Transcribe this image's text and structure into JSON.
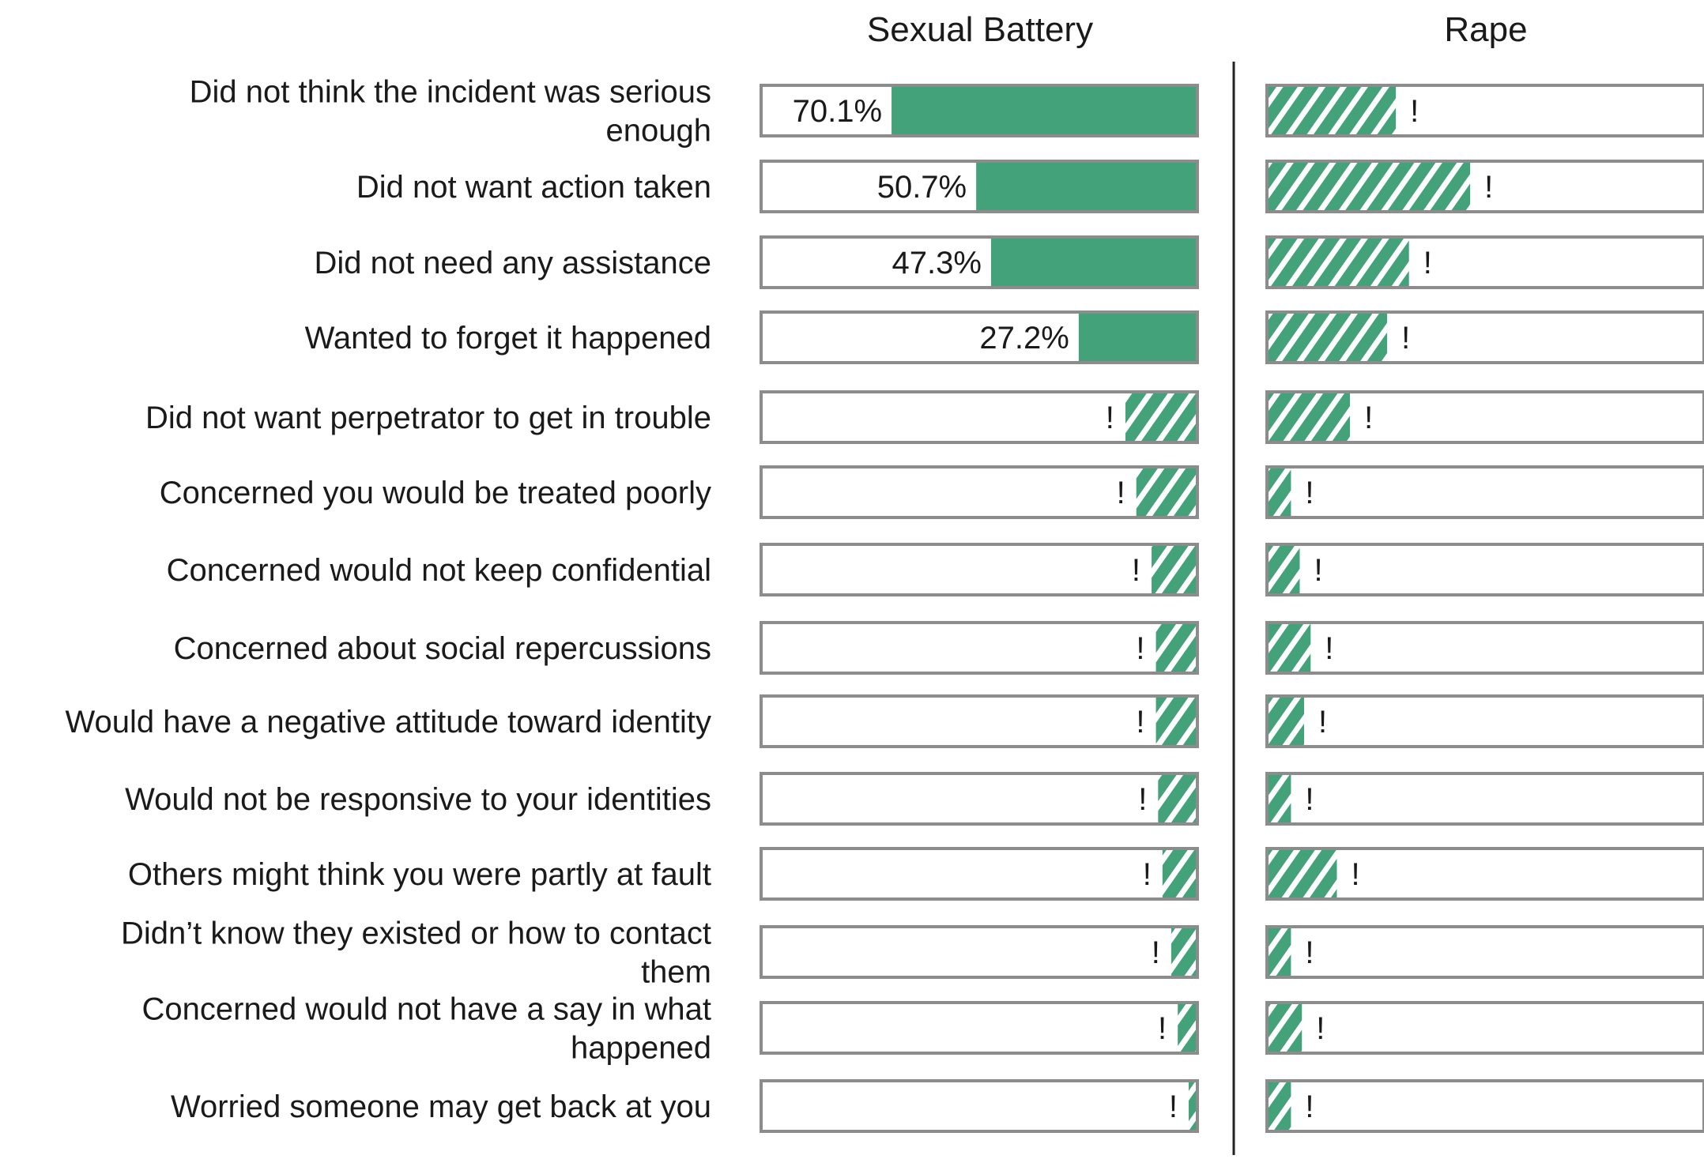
{
  "chart_data": {
    "type": "bar",
    "orientation": "horizontal",
    "legend": "none",
    "grid": false,
    "panels": [
      {
        "name": "Sexual Battery",
        "direction": "right-to-left",
        "xlim": [
          0,
          100
        ],
        "values": [
          70.1,
          50.7,
          47.3,
          27.2,
          16.5,
          14.0,
          10.5,
          9.5,
          9.5,
          9.0,
          8.0,
          6.0,
          4.5,
          2.0
        ],
        "labels": [
          "70.1%",
          "50.7%",
          "47.3%",
          "27.2%",
          "!",
          "!",
          "!",
          "!",
          "!",
          "!",
          "!",
          "!",
          "!",
          "!"
        ],
        "suppressed": [
          false,
          false,
          false,
          false,
          true,
          true,
          true,
          true,
          true,
          true,
          true,
          true,
          true,
          true
        ]
      },
      {
        "name": "Rape",
        "direction": "left-to-right",
        "xlim": [
          0,
          100
        ],
        "values": [
          29.5,
          46.5,
          32.5,
          27.5,
          19.0,
          5.5,
          7.5,
          10.0,
          8.5,
          5.5,
          16.0,
          5.5,
          8.0,
          5.5
        ],
        "labels": [
          "!",
          "!",
          "!",
          "!",
          "!",
          "!",
          "!",
          "!",
          "!",
          "!",
          "!",
          "!",
          "!",
          "!"
        ],
        "suppressed": [
          true,
          true,
          true,
          true,
          true,
          true,
          true,
          true,
          true,
          true,
          true,
          true,
          true,
          true
        ]
      }
    ],
    "categories": [
      [
        "Did not think the incident was serious",
        "enough"
      ],
      [
        "Did not want action taken"
      ],
      [
        "Did not need any assistance"
      ],
      [
        "Wanted to forget it happened"
      ],
      [
        "Did not want perpetrator to get in trouble"
      ],
      [
        "Concerned you would be treated poorly"
      ],
      [
        "Concerned would not keep confidential"
      ],
      [
        "Concerned about social repercussions"
      ],
      [
        "Would have a negative attitude toward identity"
      ],
      [
        "Would not be responsive to your identities"
      ],
      [
        "Others might think you were partly at fault"
      ],
      [
        "Didn’t know they existed or how to contact",
        "them"
      ],
      [
        "Concerned would not have a say in what",
        "happened"
      ],
      [
        "Worried someone may get back at you"
      ]
    ],
    "colors": {
      "bar_fill": "#43a27a",
      "bar_outline": "#8c8c8c",
      "hatch_stripe": "#ffffff",
      "divider": "#222222",
      "text": "#1a1a1a"
    }
  }
}
